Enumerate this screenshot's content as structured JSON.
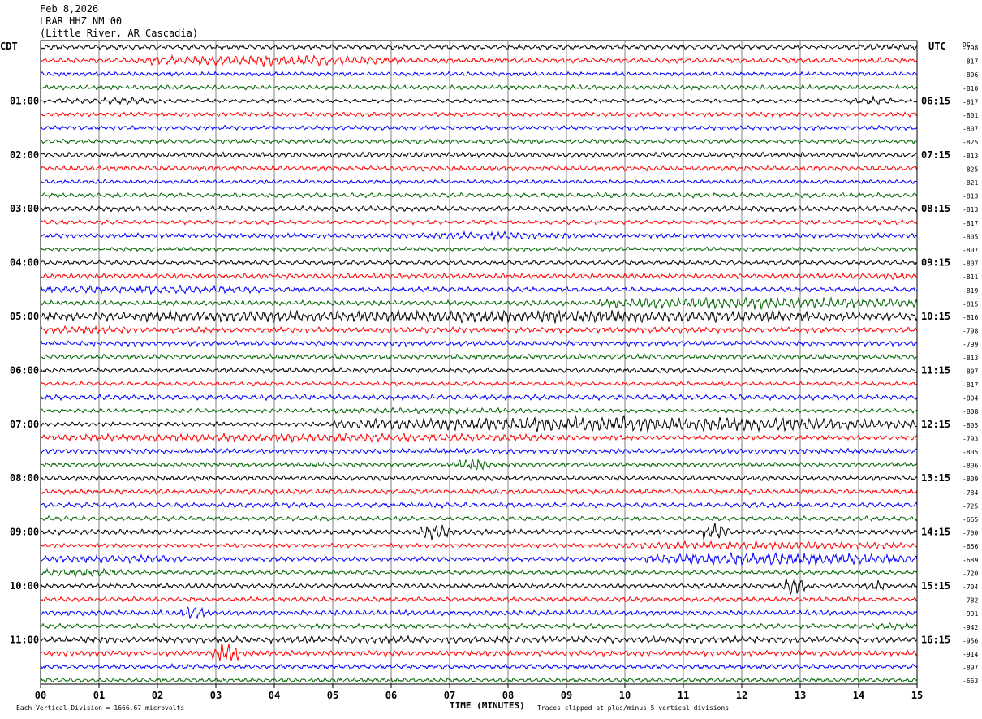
{
  "header": {
    "date": "Feb 8,2026",
    "station": "LRAR HHZ NM 00",
    "location": "(Little River, AR Cascadia)"
  },
  "left_tz": "CDT",
  "right_tz": "UTC",
  "dc_label": "DC",
  "footer": {
    "left": "Each Vertical Division = 1666.67 microvolts",
    "center": "TIME (MINUTES)",
    "right": "Traces clipped at plus/minus 5 vertical divisions"
  },
  "colors": {
    "black": "#000000",
    "red": "#ff0000",
    "blue": "#0000ff",
    "green": "#006400",
    "grid": "#808080"
  },
  "chart_data": {
    "type": "line",
    "title": "LRAR HHZ NM 00",
    "xlabel": "TIME (MINUTES)",
    "xlim": [
      0,
      15
    ],
    "x_ticks": [
      "00",
      "01",
      "02",
      "03",
      "04",
      "05",
      "06",
      "07",
      "08",
      "09",
      "10",
      "11",
      "12",
      "13",
      "14",
      "15"
    ],
    "rows_per_hour": 4,
    "row_colors": [
      "black",
      "red",
      "blue",
      "green"
    ],
    "left_hour_labels": [
      "01:00",
      "02:00",
      "03:00",
      "04:00",
      "05:00",
      "06:00",
      "07:00",
      "08:00",
      "09:00",
      "10:00",
      "11:00"
    ],
    "right_hour_labels": [
      "06:15",
      "07:15",
      "08:15",
      "09:15",
      "10:15",
      "11:15",
      "12:15",
      "13:15",
      "14:15",
      "15:15",
      "16:15"
    ],
    "dc_offsets": [
      "-798",
      "-817",
      "-806",
      "-810",
      "-817",
      "-801",
      "-807",
      "-825",
      "-813",
      "-825",
      "-821",
      "-813",
      "-813",
      "-817",
      "-805",
      "-807",
      "-807",
      "-811",
      "-819",
      "-815",
      "-816",
      "-798",
      "-799",
      "-813",
      "-807",
      "-817",
      "-804",
      "-808",
      "-805",
      "-793",
      "-805",
      "-806",
      "-809",
      "-784",
      "-725",
      "-665",
      "-700",
      "-656",
      "-689",
      "-720",
      "-704",
      "-782",
      "-991",
      "-942",
      "-956",
      "-914",
      "-897",
      "-663"
    ],
    "events": [
      {
        "row": 1,
        "start_min": 1.6,
        "end_min": 6.2,
        "level": 2.2
      },
      {
        "row": 4,
        "start_min": 0.3,
        "end_min": 2.0,
        "level": 1.8
      },
      {
        "row": 4,
        "start_min": 13.8,
        "end_min": 14.6,
        "level": 2.0
      },
      {
        "row": 0,
        "start_min": 14.0,
        "end_min": 15.0,
        "level": 1.6
      },
      {
        "row": 14,
        "start_min": 6.5,
        "end_min": 9.0,
        "level": 1.6
      },
      {
        "row": 17,
        "start_min": 14.0,
        "end_min": 15.0,
        "level": 1.4
      },
      {
        "row": 18,
        "start_min": 0.0,
        "end_min": 3.8,
        "level": 1.8
      },
      {
        "row": 19,
        "start_min": 9.5,
        "end_min": 15.0,
        "level": 2.6
      },
      {
        "row": 20,
        "start_min": 0.0,
        "end_min": 15.0,
        "level": 2.6
      },
      {
        "row": 21,
        "start_min": 0.0,
        "end_min": 1.5,
        "level": 1.5
      },
      {
        "row": 27,
        "start_min": 4.6,
        "end_min": 9.0,
        "level": 1.4
      },
      {
        "row": 28,
        "start_min": 5.0,
        "end_min": 15.0,
        "level": 3.5
      },
      {
        "row": 29,
        "start_min": 0.0,
        "end_min": 9.0,
        "level": 1.8
      },
      {
        "row": 31,
        "start_min": 7.1,
        "end_min": 7.7,
        "level": 3.0
      },
      {
        "row": 36,
        "start_min": 6.5,
        "end_min": 7.0,
        "level": 3.5
      },
      {
        "row": 36,
        "start_min": 11.3,
        "end_min": 11.8,
        "level": 3.5
      },
      {
        "row": 37,
        "start_min": 9.6,
        "end_min": 15.0,
        "level": 2.0
      },
      {
        "row": 38,
        "start_min": 0.0,
        "end_min": 2.5,
        "level": 1.8
      },
      {
        "row": 38,
        "start_min": 10.3,
        "end_min": 15.0,
        "level": 2.8
      },
      {
        "row": 39,
        "start_min": 0.0,
        "end_min": 1.5,
        "level": 2.0
      },
      {
        "row": 40,
        "start_min": 12.7,
        "end_min": 13.1,
        "level": 4.0
      },
      {
        "row": 40,
        "start_min": 14.1,
        "end_min": 14.5,
        "level": 2.2
      },
      {
        "row": 42,
        "start_min": 2.4,
        "end_min": 2.8,
        "level": 3.0
      },
      {
        "row": 43,
        "start_min": 14.3,
        "end_min": 15.0,
        "level": 1.4
      },
      {
        "row": 44,
        "start_min": 0.0,
        "end_min": 15.0,
        "level": 1.5
      },
      {
        "row": 45,
        "start_min": 2.9,
        "end_min": 3.4,
        "level": 4.0
      }
    ]
  }
}
